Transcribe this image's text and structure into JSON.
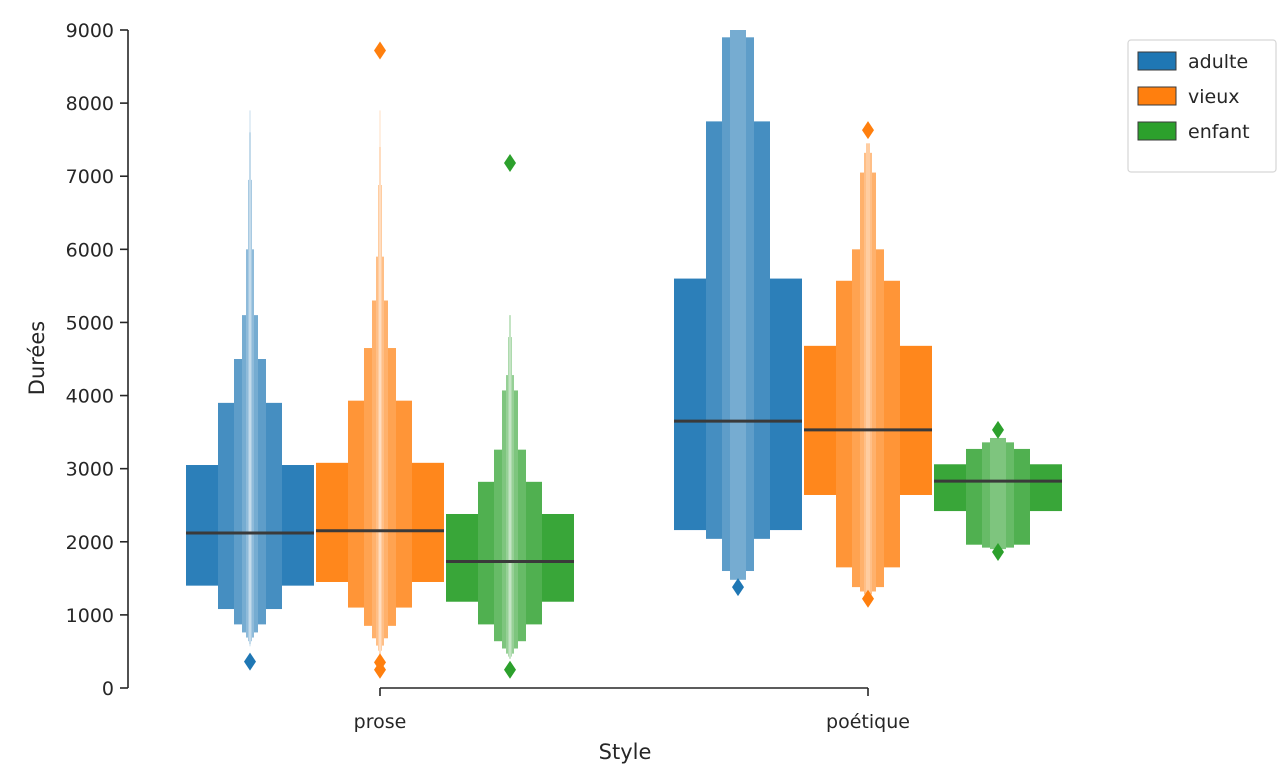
{
  "chart_data": {
    "type": "boxen",
    "title": "",
    "xlabel": "Style",
    "ylabel": "Durées",
    "ylim": [
      0,
      9000
    ],
    "yticks": [
      0,
      1000,
      2000,
      3000,
      4000,
      5000,
      6000,
      7000,
      8000,
      9000
    ],
    "grid": false,
    "legend_position": "top-right",
    "categories": [
      "prose",
      "poétique"
    ],
    "series": [
      {
        "name": "adulte",
        "color": "#1f77b4",
        "groups": [
          {
            "category": "prose",
            "median": 2120,
            "boxes": [
              [
                1400,
                3050
              ],
              [
                1080,
                3900
              ],
              [
                870,
                4500
              ],
              [
                760,
                5100
              ],
              [
                690,
                6000
              ],
              [
                640,
                6950
              ],
              [
                600,
                7600
              ],
              [
                570,
                7900
              ]
            ],
            "outliers": [
              360
            ]
          },
          {
            "category": "poétique",
            "median": 3650,
            "boxes": [
              [
                2160,
                5600
              ],
              [
                2040,
                7750
              ],
              [
                1600,
                8900
              ],
              [
                1480,
                9000
              ]
            ],
            "outliers": [
              1380
            ]
          }
        ]
      },
      {
        "name": "vieux",
        "color": "#ff7f0e",
        "groups": [
          {
            "category": "prose",
            "median": 2150,
            "boxes": [
              [
                1450,
                3080
              ],
              [
                1100,
                3930
              ],
              [
                850,
                4650
              ],
              [
                680,
                5300
              ],
              [
                580,
                5900
              ],
              [
                510,
                6880
              ],
              [
                460,
                7400
              ],
              [
                420,
                7900
              ]
            ],
            "outliers": [
              250,
              350,
              8720
            ]
          },
          {
            "category": "poétique",
            "median": 3530,
            "boxes": [
              [
                2640,
                4680
              ],
              [
                1650,
                5570
              ],
              [
                1380,
                6000
              ],
              [
                1320,
                7050
              ],
              [
                1280,
                7320
              ],
              [
                1260,
                7450
              ]
            ],
            "outliers": [
              1220,
              7630
            ]
          }
        ]
      },
      {
        "name": "enfant",
        "color": "#2ca02c",
        "groups": [
          {
            "category": "prose",
            "median": 1730,
            "boxes": [
              [
                1180,
                2380
              ],
              [
                870,
                2820
              ],
              [
                640,
                3260
              ],
              [
                540,
                4070
              ],
              [
                470,
                4280
              ],
              [
                430,
                4800
              ],
              [
                400,
                5100
              ]
            ],
            "outliers": [
              250,
              7180
            ]
          },
          {
            "category": "poétique",
            "median": 2830,
            "boxes": [
              [
                2420,
                3060
              ],
              [
                1960,
                3270
              ],
              [
                1920,
                3360
              ],
              [
                1900,
                3420
              ]
            ],
            "outliers": [
              1860,
              3530
            ]
          }
        ]
      }
    ]
  }
}
